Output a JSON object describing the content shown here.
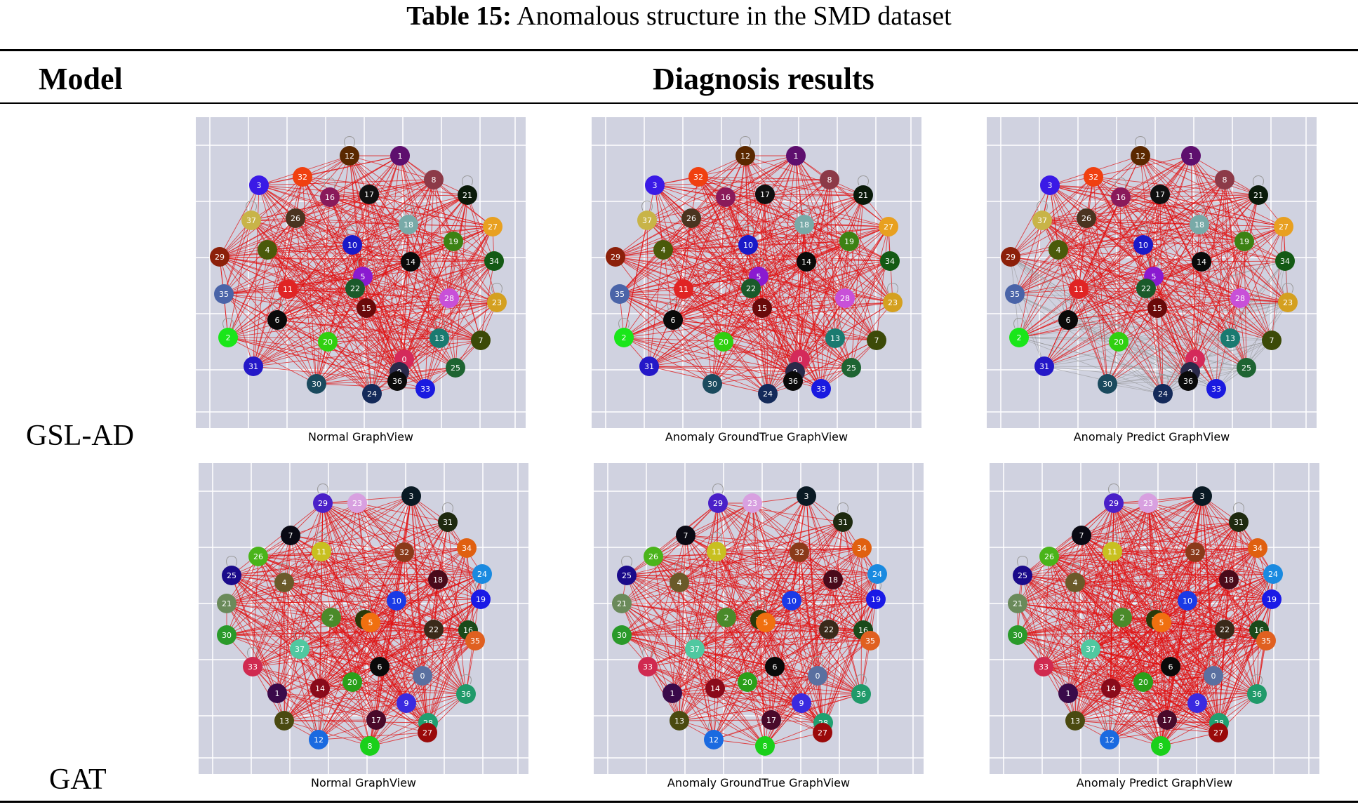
{
  "caption": {
    "label": "Table 15:",
    "text": " Anomalous structure in the SMD dataset"
  },
  "header": {
    "model": "Model",
    "results": "Diagnosis results"
  },
  "rows": [
    {
      "model": "GSL-AD",
      "nodes": [
        {
          "id": "12",
          "c": "#5a2800"
        },
        {
          "id": "1",
          "c": "#5e0f6e"
        },
        {
          "id": "8",
          "c": "#8c3a48"
        },
        {
          "id": "21",
          "c": "#0a1a0a"
        },
        {
          "id": "27",
          "c": "#e8a020"
        },
        {
          "id": "34",
          "c": "#145a14"
        },
        {
          "id": "23",
          "c": "#d4a020"
        },
        {
          "id": "7",
          "c": "#3c4a08"
        },
        {
          "id": "25",
          "c": "#1e6432"
        },
        {
          "id": "24",
          "c": "#142a5a"
        },
        {
          "id": "30",
          "c": "#1a4a5e"
        },
        {
          "id": "31",
          "c": "#2418c8"
        },
        {
          "id": "2",
          "c": "#1ae61a"
        },
        {
          "id": "35",
          "c": "#4a64a8"
        },
        {
          "id": "29",
          "c": "#8c200a"
        },
        {
          "id": "37",
          "c": "#c8b448"
        },
        {
          "id": "3",
          "c": "#3a1ae6"
        },
        {
          "id": "32",
          "c": "#f04010"
        },
        {
          "id": "16",
          "c": "#8a1a5a"
        },
        {
          "id": "17",
          "c": "#101010"
        },
        {
          "id": "26",
          "c": "#4a3420"
        },
        {
          "id": "18",
          "c": "#78aaa8"
        },
        {
          "id": "19",
          "c": "#3c8214"
        },
        {
          "id": "4",
          "c": "#4a5a0a"
        },
        {
          "id": "10",
          "c": "#1a1ac8"
        },
        {
          "id": "14",
          "c": "#0a0a0a"
        },
        {
          "id": "11",
          "c": "#e02424"
        },
        {
          "id": "5",
          "c": "#8a1ad0"
        },
        {
          "id": "22",
          "c": "#1a5a2a"
        },
        {
          "id": "28",
          "c": "#c850d8"
        },
        {
          "id": "6",
          "c": "#0a0a0a"
        },
        {
          "id": "15",
          "c": "#6a0a0a"
        },
        {
          "id": "20",
          "c": "#30d010"
        },
        {
          "id": "13",
          "c": "#1a7a70"
        },
        {
          "id": "0",
          "c": "#d42a5a"
        },
        {
          "id": "9",
          "c": "#2a2a4a"
        },
        {
          "id": "36",
          "c": "#0a0a0a"
        },
        {
          "id": "33",
          "c": "#1a1ae0"
        }
      ],
      "panels": [
        {
          "label": "Normal GraphView",
          "mode": "normal"
        },
        {
          "label": "Anomaly GroundTrue GraphView",
          "mode": "normal"
        },
        {
          "label": "Anomaly Predict GraphView",
          "mode": "anomaly"
        }
      ]
    },
    {
      "model": "GAT",
      "nodes": [
        {
          "id": "29",
          "c": "#4a20c8"
        },
        {
          "id": "23",
          "c": "#d8a0e0"
        },
        {
          "id": "3",
          "c": "#0a1a24"
        },
        {
          "id": "31",
          "c": "#1e2a10"
        },
        {
          "id": "34",
          "c": "#e06010"
        },
        {
          "id": "24",
          "c": "#1a8ae0"
        },
        {
          "id": "19",
          "c": "#1a1ae6"
        },
        {
          "id": "16",
          "c": "#1a4a1a"
        },
        {
          "id": "35",
          "c": "#e06020"
        },
        {
          "id": "36",
          "c": "#209a6a"
        },
        {
          "id": "28",
          "c": "#20a070"
        },
        {
          "id": "8",
          "c": "#1ad01a"
        },
        {
          "id": "12",
          "c": "#1a6ae0"
        },
        {
          "id": "13",
          "c": "#4a4a10"
        },
        {
          "id": "1",
          "c": "#3a0a4a"
        },
        {
          "id": "33",
          "c": "#d02a50"
        },
        {
          "id": "30",
          "c": "#2a9a2a"
        },
        {
          "id": "21",
          "c": "#6a8a5a"
        },
        {
          "id": "25",
          "c": "#1a0a8a"
        },
        {
          "id": "26",
          "c": "#4ab41a"
        },
        {
          "id": "7",
          "c": "#0a0a14"
        },
        {
          "id": "11",
          "c": "#c8c020"
        },
        {
          "id": "32",
          "c": "#8a3a1a"
        },
        {
          "id": "18",
          "c": "#4a0a1a"
        },
        {
          "id": "4",
          "c": "#6a5a2a"
        },
        {
          "id": "10",
          "c": "#1a3ae6"
        },
        {
          "id": "2",
          "c": "#4a8a2a"
        },
        {
          "id": "15",
          "c": "#2a3a0a"
        },
        {
          "id": "5",
          "c": "#f07010"
        },
        {
          "id": "22",
          "c": "#3a2a1a"
        },
        {
          "id": "37",
          "c": "#50c8a0"
        },
        {
          "id": "6",
          "c": "#0a0a0a"
        },
        {
          "id": "14",
          "c": "#8a0a1a"
        },
        {
          "id": "0",
          "c": "#5a70a0"
        },
        {
          "id": "20",
          "c": "#2aa01a"
        },
        {
          "id": "9",
          "c": "#3a2ae0"
        },
        {
          "id": "27",
          "c": "#9a0a0a"
        },
        {
          "id": "17",
          "c": "#4a0a2a"
        }
      ],
      "panels": [
        {
          "label": "Normal GraphView",
          "mode": "normal"
        },
        {
          "label": "Anomaly GroundTrue GraphView",
          "mode": "normal"
        },
        {
          "label": "Anomaly Predict GraphView",
          "mode": "dense"
        }
      ]
    }
  ],
  "colors": {
    "edge": "#e01010",
    "anomaly_edge": "#8c8c8c",
    "panel_bg": "#d0d2e0",
    "grid": "#ffffff"
  }
}
